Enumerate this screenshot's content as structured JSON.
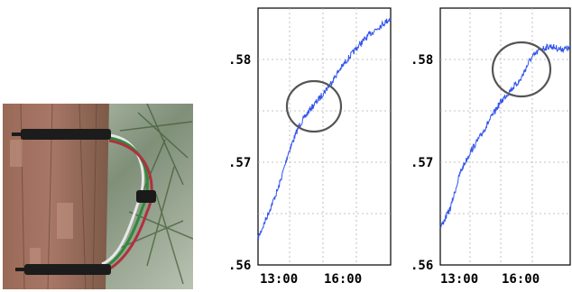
{
  "chart_data": [
    {
      "type": "line",
      "x": [
        "11:30",
        "12:00",
        "12:30",
        "13:00",
        "13:30",
        "14:00",
        "14:30",
        "15:00",
        "15:30",
        "16:00",
        "16:30",
        "17:00",
        "17:30",
        "18:00"
      ],
      "series": [
        {
          "values": [
            0.5626,
            0.565,
            0.5675,
            0.571,
            0.5735,
            0.575,
            0.5762,
            0.5775,
            0.579,
            0.5803,
            0.5815,
            0.5825,
            0.5833,
            0.584
          ]
        }
      ],
      "xticks": [
        "13:00",
        "16:00"
      ],
      "yticks": [
        ".56",
        ".57",
        ".58"
      ],
      "ylim": [
        0.56,
        0.585
      ],
      "grid": true,
      "annotation": "circle",
      "color": "#3355ee"
    },
    {
      "type": "line",
      "x": [
        "11:30",
        "12:00",
        "12:30",
        "13:00",
        "13:30",
        "14:00",
        "14:30",
        "15:00",
        "15:30",
        "16:00",
        "16:30",
        "17:00",
        "17:30",
        "18:00"
      ],
      "series": [
        {
          "values": [
            0.5636,
            0.5655,
            0.569,
            0.571,
            0.5725,
            0.5742,
            0.5758,
            0.577,
            0.578,
            0.58,
            0.581,
            0.5813,
            0.581,
            0.5811
          ]
        }
      ],
      "xticks": [
        "13:00",
        "16:00"
      ],
      "yticks": [
        ".56",
        ".57",
        ".58"
      ],
      "ylim": [
        0.56,
        0.585
      ],
      "grid": true,
      "annotation": "circle",
      "color": "#3355ee"
    }
  ],
  "photo": {
    "subject": "tree-trunk-sensor-probes"
  }
}
